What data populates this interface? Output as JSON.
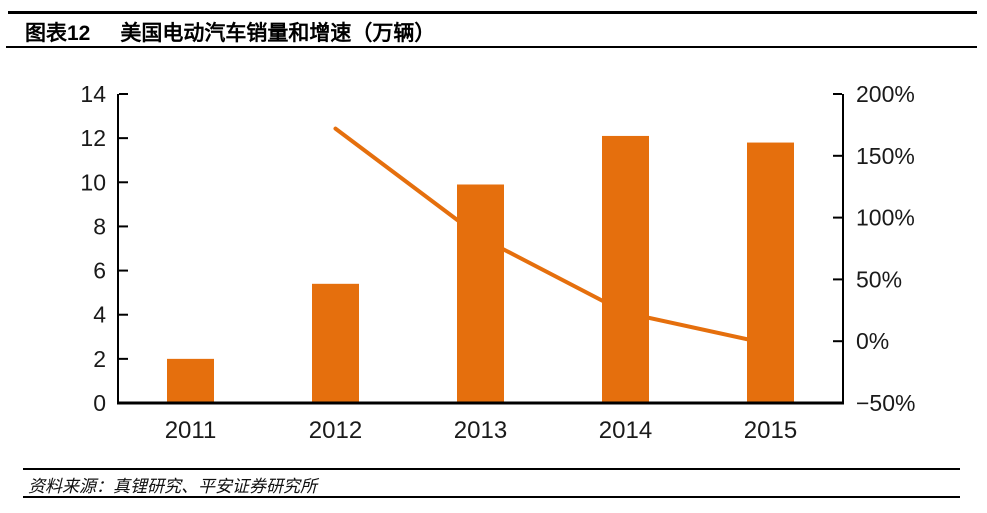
{
  "header": {
    "figure_label": "图表12",
    "title": "美国电动汽车销量和增速（万辆）"
  },
  "chart_data": {
    "type": "bar",
    "subtype": "bar+line-dual-axis",
    "title": "美国电动汽车销量和增速（万辆）",
    "categories": [
      "2011",
      "2012",
      "2013",
      "2014",
      "2015"
    ],
    "series": [
      {
        "name": "美国电动汽车销量（万辆）",
        "type": "bar",
        "axis": "left",
        "values": [
          2.0,
          5.4,
          9.9,
          12.1,
          11.8
        ],
        "color": "#E56F0D"
      },
      {
        "name": "增速",
        "type": "line",
        "axis": "right",
        "unit": "%",
        "values": [
          null,
          172,
          84,
          23,
          -2.5
        ],
        "color": "#E56F0D"
      }
    ],
    "left_axis": {
      "min": 0,
      "max": 14,
      "ticks": [
        0,
        2,
        4,
        6,
        8,
        10,
        12,
        14
      ],
      "tick_labels": [
        "0",
        "2",
        "4",
        "6",
        "8",
        "10",
        "12",
        "14"
      ]
    },
    "right_axis": {
      "min": -50,
      "max": 200,
      "ticks": [
        -50,
        0,
        50,
        100,
        150,
        200
      ],
      "tick_labels": [
        "−50%",
        "0%",
        "50%",
        "100%",
        "150%",
        "200%"
      ]
    },
    "grid": false,
    "legend": "none",
    "xlabel": "",
    "ylabel": ""
  },
  "footer": {
    "source": "资料来源：真锂研究、平安证券研究所"
  },
  "colors": {
    "accent": "#E56F0D",
    "axis": "#000000",
    "text": "#1a1a1a"
  }
}
